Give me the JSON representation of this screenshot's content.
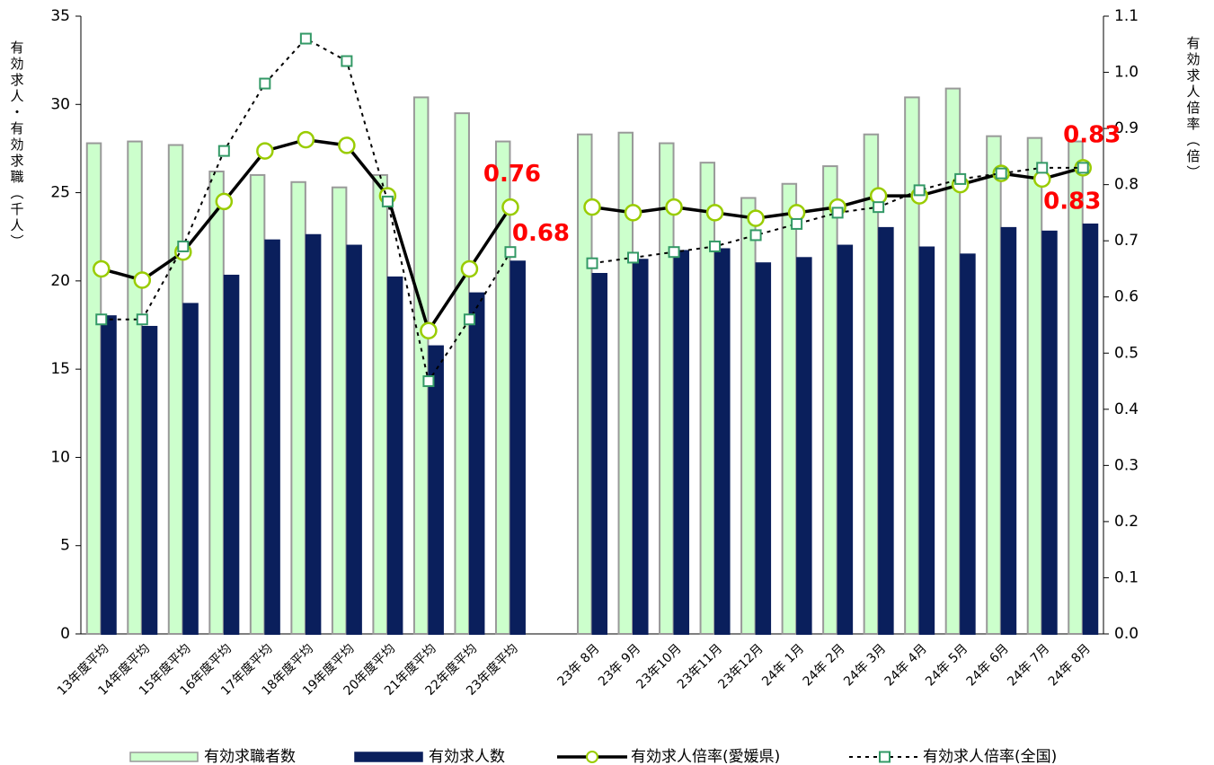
{
  "chart_data": {
    "type": "bar-line",
    "y_label": "有効求人・有効求職（千人）",
    "y2_label": "有効求人倍率（倍）",
    "categories": [
      "13年度平均",
      "14年度平均",
      "15年度平均",
      "16年度平均",
      "17年度平均",
      "18年度平均",
      "19年度平均",
      "20年度平均",
      "21年度平均",
      "22年度平均",
      "23年度平均",
      null,
      "23年 8月",
      "23年 9月",
      "23年10月",
      "23年11月",
      "23年12月",
      "24年 1月",
      "24年 2月",
      "24年 3月",
      "24年 4月",
      "24年 5月",
      "24年 6月",
      "24年 7月",
      "24年 8月"
    ],
    "series": [
      {
        "name": "有効求職者数",
        "kind": "bar",
        "color": "#ccffcc",
        "values": [
          27.8,
          27.9,
          27.7,
          26.2,
          26.0,
          25.6,
          25.3,
          26.0,
          30.4,
          29.5,
          27.9,
          null,
          28.3,
          28.4,
          27.8,
          26.7,
          24.7,
          25.5,
          26.5,
          28.3,
          30.4,
          30.9,
          28.2,
          28.1,
          27.9
        ]
      },
      {
        "name": "有効求人数",
        "kind": "bar",
        "color": "#0a1f5c",
        "values": [
          18.0,
          17.4,
          18.7,
          20.3,
          22.3,
          22.6,
          22.0,
          20.2,
          16.3,
          19.3,
          21.1,
          null,
          20.4,
          21.2,
          21.7,
          21.8,
          21.0,
          21.3,
          22.0,
          23.0,
          21.9,
          21.5,
          23.0,
          22.8,
          23.2
        ]
      },
      {
        "name": "有効求人倍率(愛媛県)",
        "kind": "line",
        "axis": "y2",
        "color": "#99cc00",
        "values": [
          0.65,
          0.63,
          0.68,
          0.77,
          0.86,
          0.88,
          0.87,
          0.78,
          0.54,
          0.65,
          0.76,
          null,
          0.76,
          0.75,
          0.76,
          0.75,
          0.74,
          0.75,
          0.76,
          0.78,
          0.78,
          0.8,
          0.82,
          0.81,
          0.83
        ],
        "value_labels": [
          null,
          null,
          null,
          null,
          null,
          null,
          null,
          null,
          null,
          null,
          "0.76",
          null,
          null,
          null,
          null,
          null,
          null,
          null,
          null,
          null,
          null,
          null,
          null,
          null,
          "0.83"
        ]
      },
      {
        "name": "有効求人倍率(全国)",
        "kind": "line",
        "axis": "y2",
        "dashed": true,
        "color": "#339966",
        "values": [
          0.56,
          0.56,
          0.69,
          0.86,
          0.98,
          1.06,
          1.02,
          0.77,
          0.45,
          0.56,
          0.68,
          null,
          0.66,
          0.67,
          0.68,
          0.69,
          0.71,
          0.73,
          0.75,
          0.76,
          0.79,
          0.81,
          0.82,
          0.83,
          0.83
        ],
        "value_labels": [
          null,
          null,
          null,
          null,
          null,
          null,
          null,
          null,
          null,
          null,
          "0.68",
          null,
          null,
          null,
          null,
          null,
          null,
          null,
          null,
          null,
          null,
          null,
          null,
          null,
          "0.83"
        ]
      }
    ],
    "ylim": [
      0,
      35
    ],
    "yticks": [
      0,
      5,
      10,
      15,
      20,
      25,
      30,
      35
    ],
    "y2lim": [
      0,
      1.1
    ],
    "y2ticks": [
      {
        "value": 0,
        "label": "0.0"
      },
      0.1,
      0.2,
      0.3,
      0.4,
      0.5,
      0.6,
      0.7,
      0.8,
      0.9,
      {
        "value": 1,
        "label": "1.0"
      },
      1.1
    ],
    "legend": "bottom"
  }
}
